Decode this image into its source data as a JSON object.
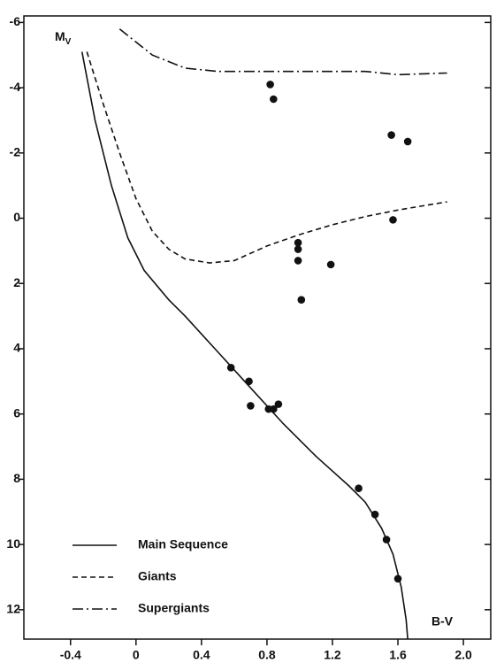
{
  "chart_data": {
    "type": "scatter",
    "xlabel": "B-V",
    "ylabel": {
      "main": "M",
      "sub": "V"
    },
    "xlim": [
      -0.685,
      2.167
    ],
    "ylim": [
      12.9,
      -6.2
    ],
    "xticks": [
      -0.4,
      0,
      0.4,
      0.8,
      1.2,
      1.6,
      {
        "value": 2,
        "label": "2.0"
      }
    ],
    "yticks": [
      -6,
      -4,
      -2,
      0,
      2,
      4,
      6,
      8,
      10,
      12
    ],
    "points": {
      "color": "#111",
      "x": [
        0.82,
        0.84,
        1.56,
        1.66,
        1.57,
        0.99,
        0.99,
        0.99,
        1.19,
        1.01,
        0.58,
        0.69,
        0.7,
        0.81,
        0.84,
        0.87,
        1.36,
        1.46,
        1.53,
        1.6
      ],
      "y": [
        -4.1,
        -3.65,
        -2.55,
        -2.35,
        0.05,
        0.75,
        0.95,
        1.3,
        1.42,
        2.5,
        4.58,
        5.0,
        5.75,
        5.85,
        5.85,
        5.7,
        8.28,
        9.08,
        9.85,
        11.05
      ]
    },
    "series": [
      {
        "name": "Main Sequence",
        "style": "solid",
        "color": "#111",
        "x": [
          -0.33,
          -0.25,
          -0.15,
          -0.05,
          0.05,
          0.2,
          0.3,
          0.5,
          0.7,
          0.9,
          1.1,
          1.3,
          1.4,
          1.5,
          1.57,
          1.62,
          1.65,
          1.66
        ],
        "y": [
          -5.1,
          -3,
          -1,
          0.6,
          1.6,
          2.5,
          3,
          4.1,
          5.2,
          6.3,
          7.3,
          8.2,
          8.7,
          9.5,
          10.3,
          11.3,
          12.3,
          12.9
        ]
      },
      {
        "name": "Giants",
        "style": "dashed",
        "color": "#111",
        "x": [
          -0.3,
          -0.2,
          -0.1,
          0,
          0.1,
          0.2,
          0.3,
          0.45,
          0.6,
          0.8,
          1.0,
          1.2,
          1.4,
          1.6,
          1.8,
          1.9
        ],
        "y": [
          -5.1,
          -3.5,
          -2,
          -0.6,
          0.4,
          0.95,
          1.25,
          1.37,
          1.3,
          0.85,
          0.5,
          0.2,
          -0.05,
          -0.25,
          -0.42,
          -0.5
        ]
      },
      {
        "name": "Supergiants",
        "style": "dashdot",
        "color": "#111",
        "x": [
          -0.1,
          0.1,
          0.3,
          0.5,
          0.8,
          1.2,
          1.4,
          1.6,
          1.9
        ],
        "y": [
          -5.8,
          -5.0,
          -4.6,
          -4.5,
          -4.5,
          -4.5,
          -4.5,
          -4.4,
          -4.45
        ]
      }
    ]
  }
}
